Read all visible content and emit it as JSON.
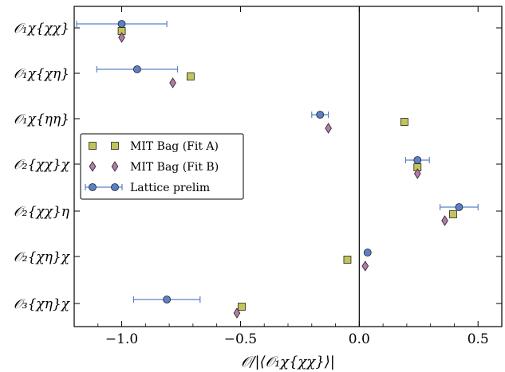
{
  "chart_data": {
    "type": "scatter",
    "orientation": "horizontal-categories",
    "xlabel": "𝒪/|⟨𝒪₁χ{χχ}⟩|",
    "xlim": [
      -1.2,
      0.6
    ],
    "xticks": [
      -1.0,
      -0.5,
      0.0,
      0.5
    ],
    "xtick_labels": [
      "−1.0",
      "−0.5",
      "0.0",
      "0.5"
    ],
    "vertical_reference_line_x": 0.0,
    "grid": false,
    "legend_position": "center-left",
    "categories": [
      "𝒪₁χ{χχ}",
      "𝒪₁χ{χη}",
      "𝒪₁χ{ηη}",
      "𝒪₂{χχ}χ",
      "𝒪₂{χχ}η",
      "𝒪₂{χη}χ",
      "𝒪₃{χη}χ"
    ],
    "series": [
      {
        "name": "MIT Bag (Fit A)",
        "marker": "square",
        "color": "#c2c45a",
        "values": [
          -1.0,
          -0.71,
          0.19,
          0.245,
          0.395,
          -0.05,
          -0.495
        ]
      },
      {
        "name": "MIT Bag (Fit B)",
        "marker": "diamond",
        "color": "#b57aa8",
        "values": [
          -1.0,
          -0.785,
          -0.13,
          0.245,
          0.36,
          0.025,
          -0.515
        ]
      },
      {
        "name": "Lattice prelim",
        "marker": "circle",
        "color": "#5b80c8",
        "values": [
          -1.0,
          -0.935,
          -0.165,
          0.245,
          0.42,
          0.035,
          -0.81
        ],
        "xerr": [
          0.19,
          0.17,
          0.035,
          0.05,
          0.08,
          0.0,
          0.14
        ]
      }
    ]
  }
}
